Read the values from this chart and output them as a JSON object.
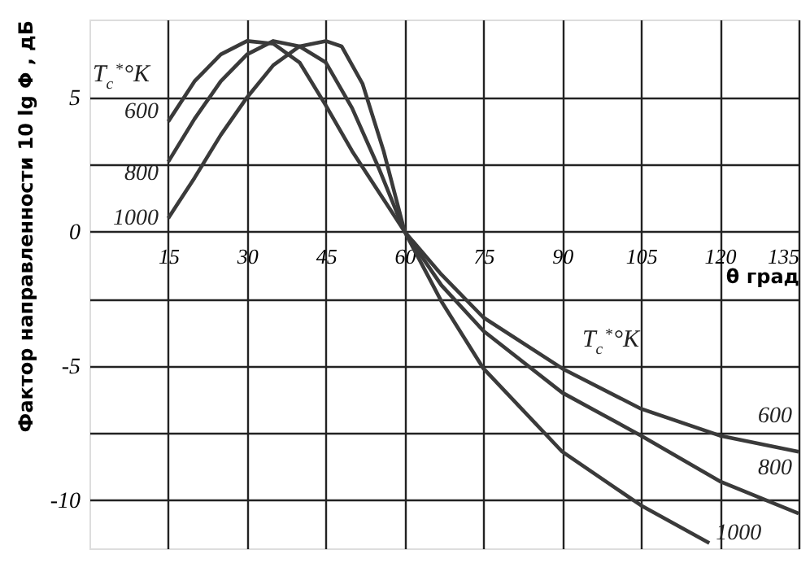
{
  "chart_data": {
    "type": "line",
    "xlabel": "θ град",
    "ylabel": "Фактор направленности  10 lg Φ , дБ",
    "x": [
      15,
      20,
      25,
      30,
      35,
      40,
      45,
      50,
      55,
      60,
      67,
      75,
      90,
      105,
      120,
      135
    ],
    "series": [
      {
        "name": "600",
        "color": "#3a3a3a",
        "values": [
          4.1,
          5.6,
          6.6,
          7.1,
          7.0,
          6.3,
          4.7,
          3.0,
          1.5,
          0,
          -1.6,
          -3.2,
          -5.1,
          -6.6,
          -7.6,
          -8.2
        ]
      },
      {
        "name": "800",
        "color": "#3a3a3a",
        "values": [
          2.6,
          4.2,
          5.6,
          6.6,
          7.1,
          6.9,
          6.3,
          4.6,
          2.4,
          0,
          -2.0,
          -3.7,
          -6.0,
          -7.6,
          -9.3,
          -10.5
        ]
      },
      {
        "name": "1000",
        "color": "#3a3a3a",
        "x": [
          15,
          20,
          25,
          30,
          35,
          40,
          45,
          48,
          52,
          56,
          60,
          67,
          75,
          90,
          105,
          118
        ],
        "values": [
          0.5,
          2.0,
          3.6,
          5.0,
          6.2,
          6.9,
          7.1,
          6.9,
          5.5,
          3.0,
          0,
          -2.6,
          -5.1,
          -8.2,
          -10.2,
          -11.6
        ]
      }
    ],
    "annotations": [
      "T$_{c}$$^{*}$°K",
      "T$_{c}$$^{*}$°K"
    ],
    "xlim": [
      0,
      135
    ],
    "xticks": [
      15,
      30,
      45,
      60,
      75,
      90,
      105,
      120,
      135
    ],
    "ylim": [
      -11.8,
      7.9
    ],
    "yticks": [
      5,
      {
        "value": 2.5,
        "label": null
      },
      0,
      {
        "value": -2.5,
        "label": null
      },
      -5,
      {
        "value": -7.5,
        "label": null
      },
      -10
    ],
    "grid": true,
    "legend": false,
    "marker": "none",
    "line_style": "solid"
  }
}
